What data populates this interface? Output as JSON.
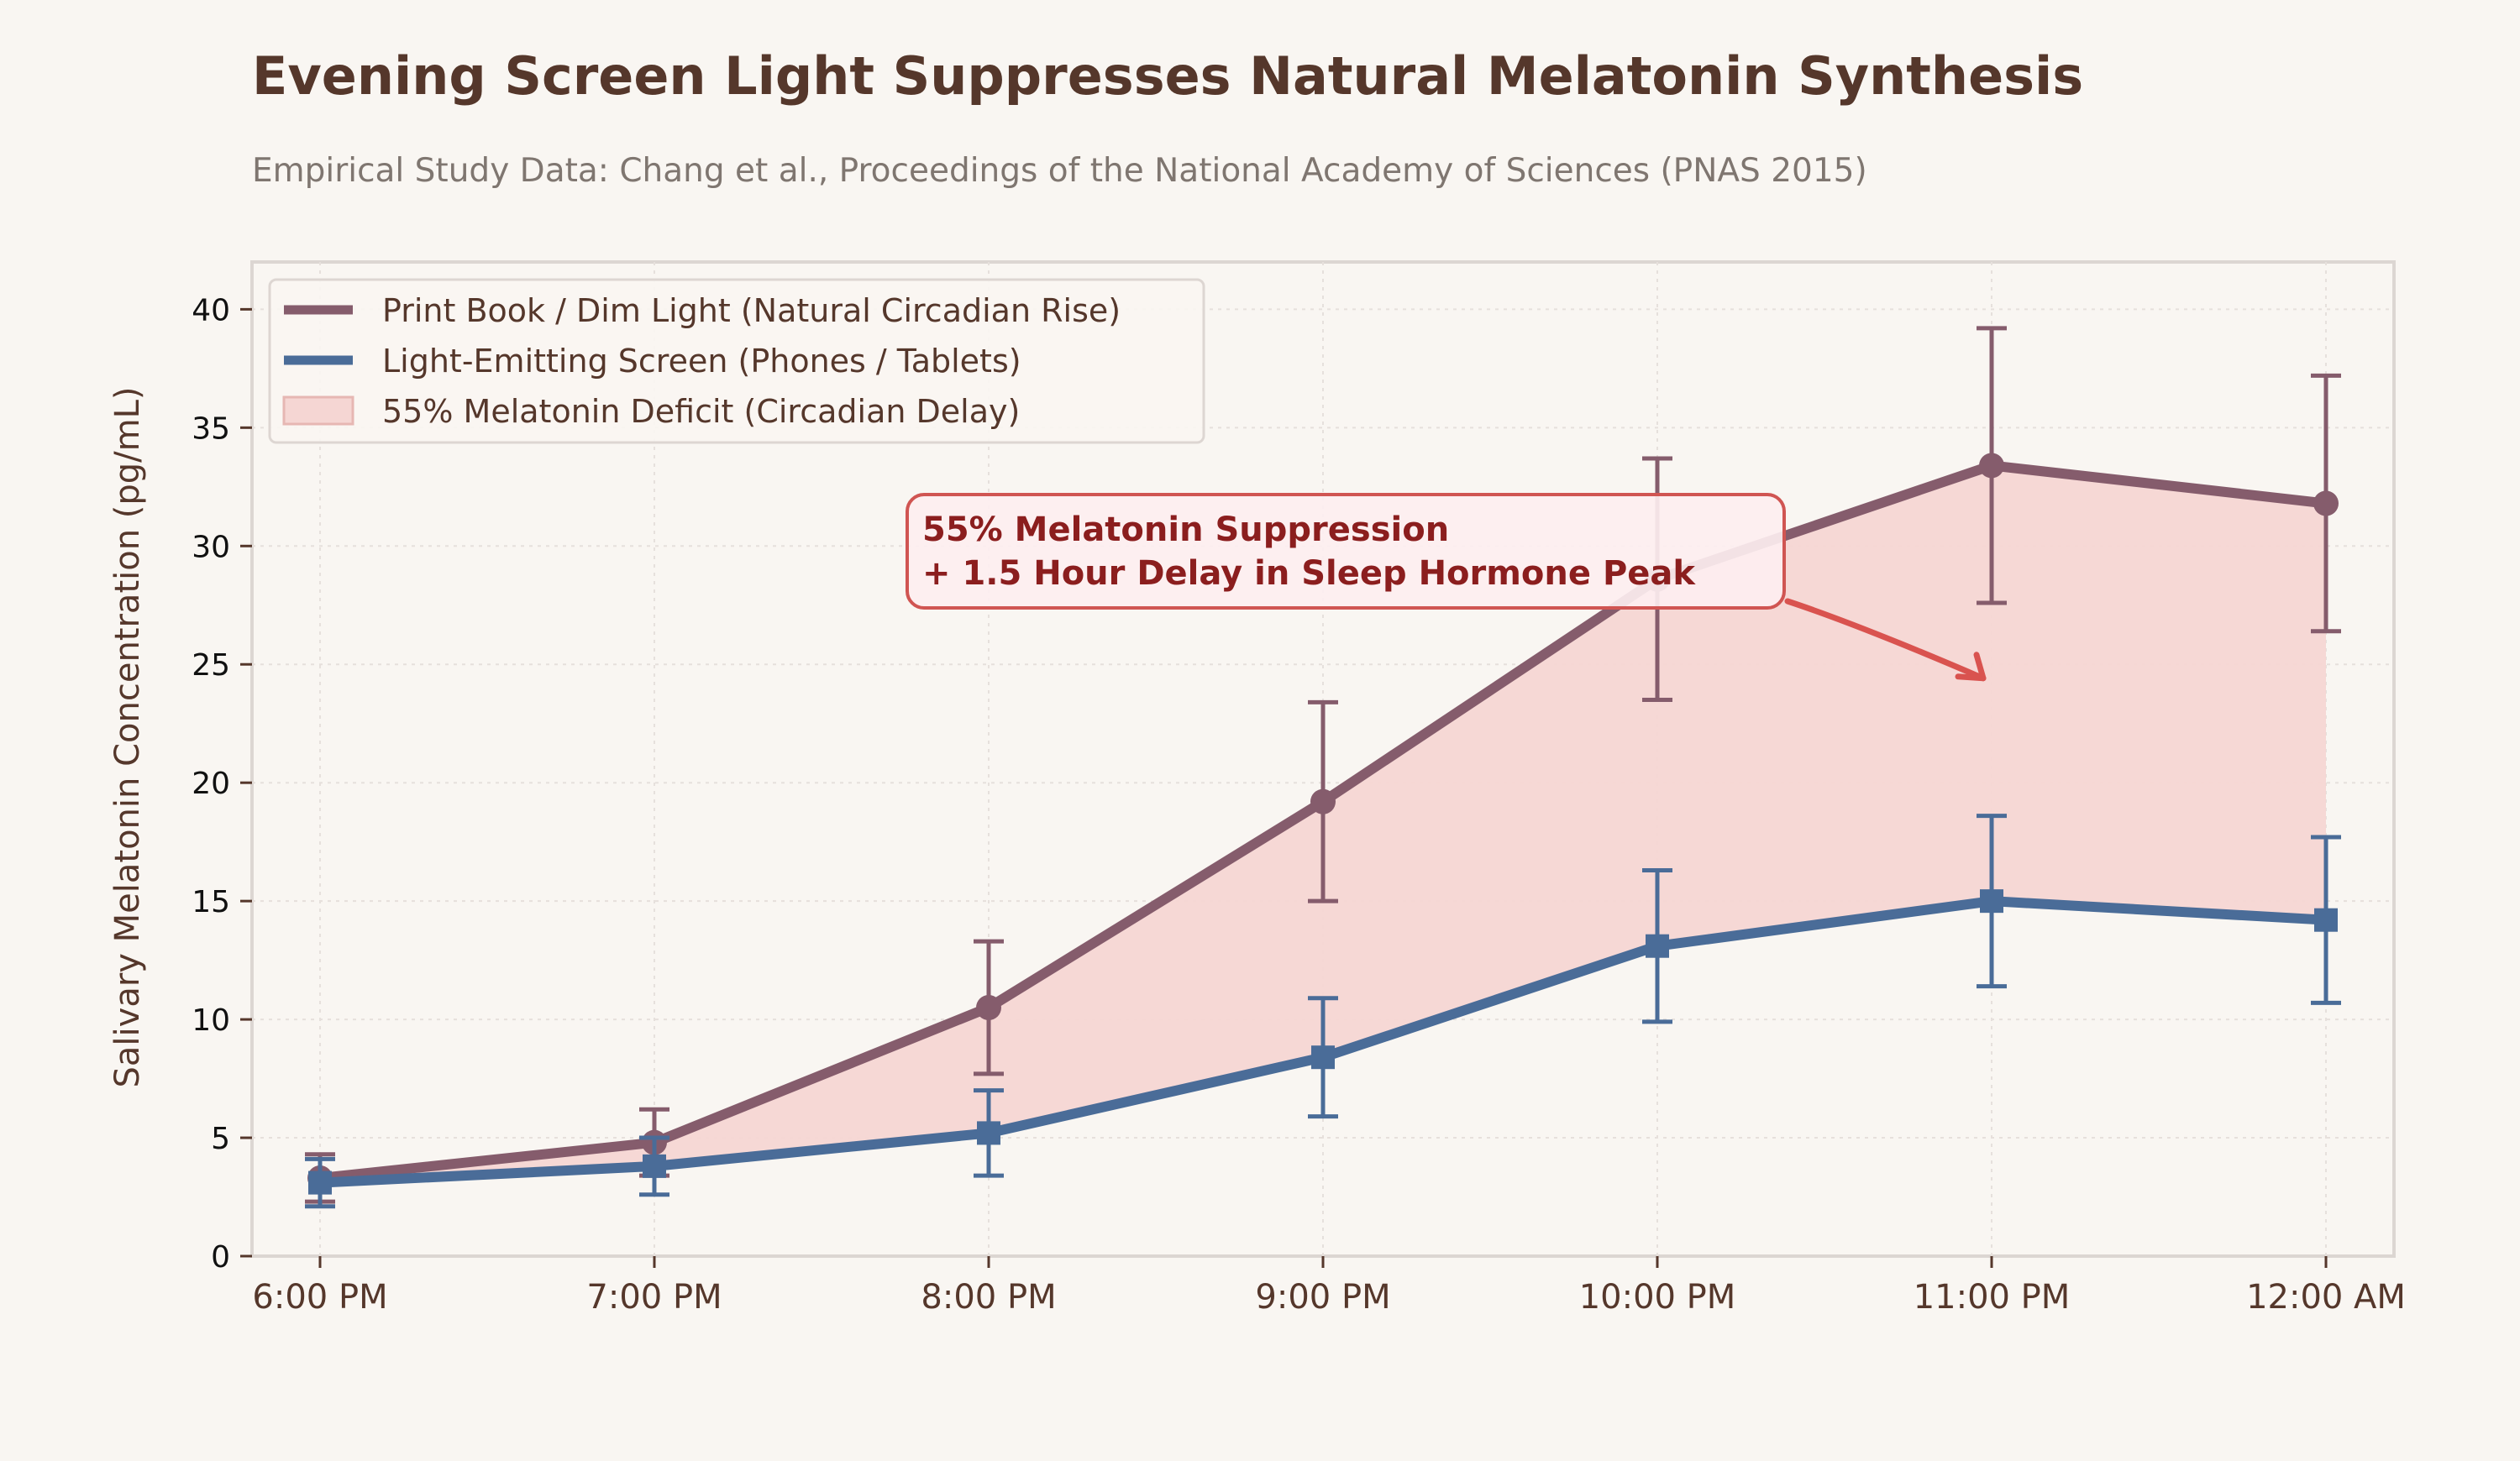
{
  "colors": {
    "background": "#f9f6f2",
    "title": "#55372b",
    "subtitle": "#7f7670",
    "print_book": "#855c6c",
    "screen": "#4a6c98",
    "deficit_fill": "#f5d6d3",
    "annotation_text": "#8b1e1e",
    "annotation_border": "#d05552",
    "annotation_bg": "#fdeef0",
    "annotation_arrow": "#d9534f"
  },
  "chart_data": {
    "type": "line",
    "title": "Evening Screen Light Suppresses Natural Melatonin Synthesis",
    "subtitle": "Empirical Study Data: Chang et al., Proceedings of the National Academy of Sciences (PNAS 2015)",
    "xlabel": "",
    "ylabel": "Salivary Melatonin Concentration (pg/mL)",
    "categories": [
      "6:00 PM",
      "7:00 PM",
      "8:00 PM",
      "9:00 PM",
      "10:00 PM",
      "11:00 PM",
      "12:00 AM"
    ],
    "ylim": [
      0,
      42
    ],
    "yticks": [
      0,
      5,
      10,
      15,
      20,
      25,
      30,
      35,
      40
    ],
    "grid": true,
    "legend_position": "top-left",
    "series": [
      {
        "name": "Print Book / Dim Light (Natural Circadian Rise)",
        "marker": "circle",
        "values": [
          3.3,
          4.8,
          10.5,
          19.2,
          28.6,
          33.4,
          31.8
        ],
        "error": [
          1.0,
          1.4,
          2.8,
          4.2,
          5.1,
          5.8,
          5.4
        ]
      },
      {
        "name": "Light-Emitting Screen (Phones / Tablets)",
        "marker": "square",
        "values": [
          3.1,
          3.8,
          5.2,
          8.4,
          13.1,
          15.0,
          14.2
        ],
        "error": [
          1.0,
          1.2,
          1.8,
          2.5,
          3.2,
          3.6,
          3.5
        ]
      }
    ],
    "fill_between": {
      "label": "55% Melatonin Deficit (Circadian Delay)"
    },
    "annotation": {
      "lines": [
        "55% Melatonin Suppression",
        "+ 1.5 Hour Delay in Sleep Hormone Peak"
      ],
      "arrow_to": {
        "x": "11:00 PM",
        "y": 24.2
      }
    }
  }
}
